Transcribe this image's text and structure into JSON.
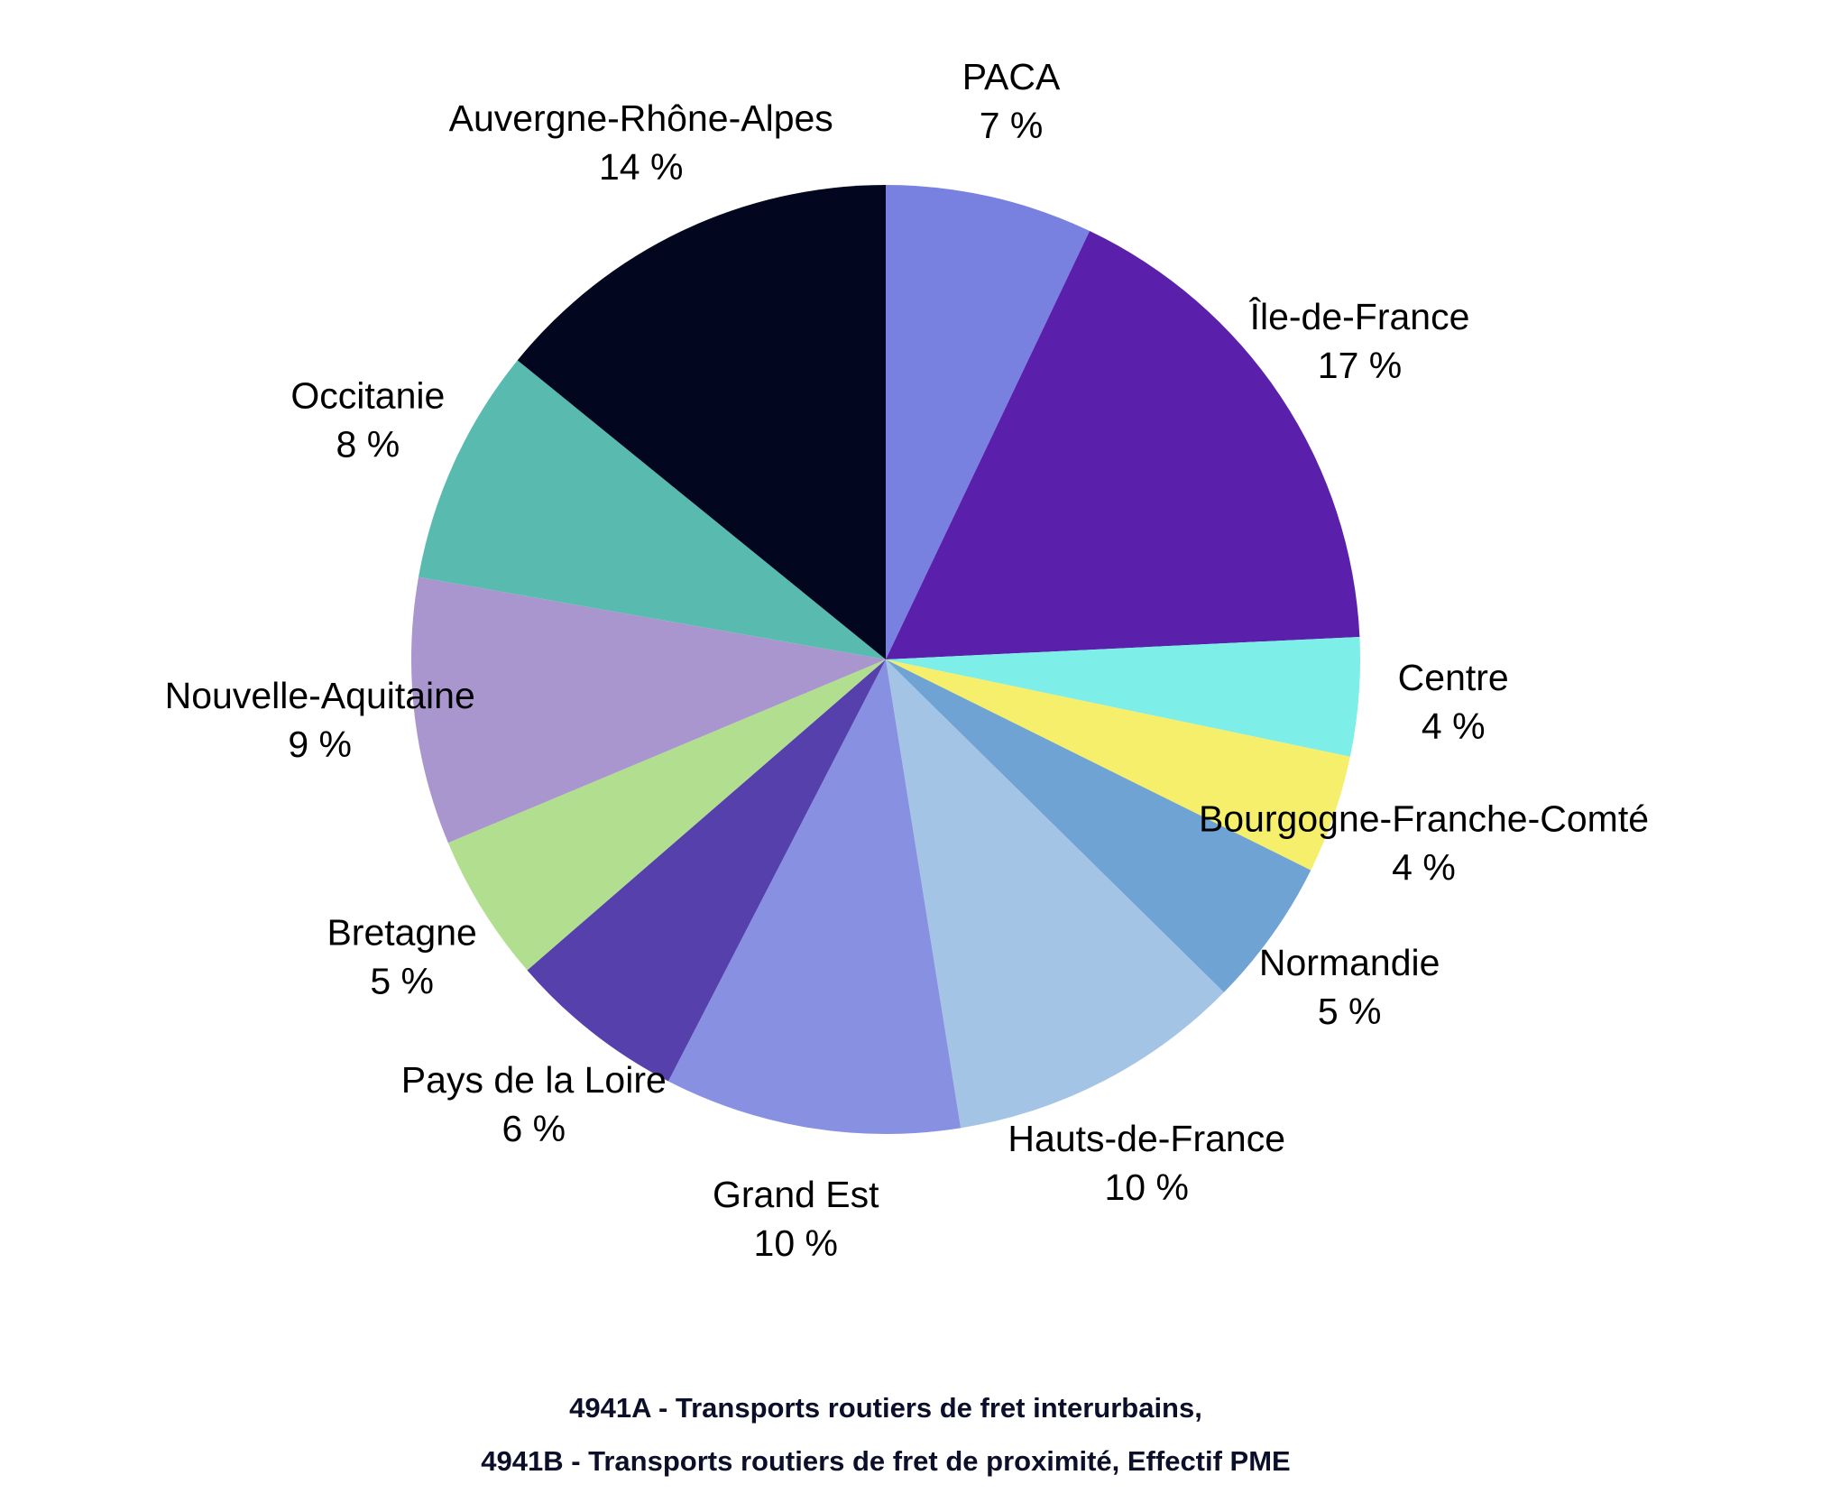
{
  "chart_data": {
    "type": "pie",
    "title": [
      "4941A - Transports routiers de fret interurbains,",
      "4941B - Transports routiers de fret de proximité, Effectif PME"
    ],
    "categories": [
      "PACA",
      "Île-de-France",
      "Centre",
      "Bourgogne-Franche-Comté",
      "Normandie",
      "Hauts-de-France",
      "Grand Est",
      "Pays de la Loire",
      "Bretagne",
      "Nouvelle-Aquitaine",
      "Occitanie",
      "Auvergne-Rhône-Alpes"
    ],
    "values": [
      7,
      17,
      4,
      4,
      5,
      10,
      10,
      6,
      5,
      9,
      8,
      14
    ],
    "value_labels": [
      "7 %",
      "17 %",
      "4 %",
      "4 %",
      "5 %",
      "10 %",
      "10 %",
      "6 %",
      "5 %",
      "9 %",
      "8 %",
      "14 %"
    ],
    "colors": [
      "#7880e0",
      "#5a1fab",
      "#7deee8",
      "#f5ef6b",
      "#6fa3d4",
      "#a4c4e6",
      "#8890e2",
      "#5540ac",
      "#b2de90",
      "#a996ce",
      "#59bab0",
      "#02061e"
    ]
  }
}
